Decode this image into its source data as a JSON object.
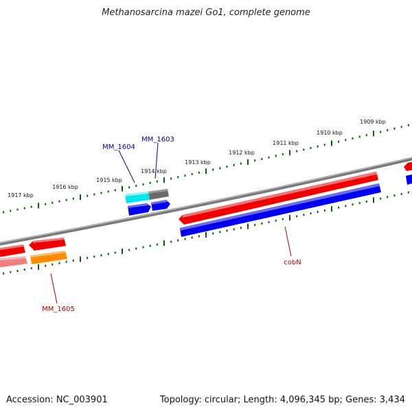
{
  "title": "Methanosarcina mazei Go1, complete genome",
  "footer": {
    "accession": "Accession: NC_003901",
    "summary": "Topology: circular; Length: 4,096,345 bp; Genes: 3,434"
  },
  "ticks": [
    "1917 kbp",
    "1916 kbp",
    "1915 kbp",
    "1914 kbp",
    "1913 kbp",
    "1912 kbp",
    "1911 kbp",
    "1910 kbp",
    "1909 kbp"
  ],
  "gene_labels": [
    {
      "text": "MM_1604",
      "color": "#00008b"
    },
    {
      "text": "MM_1603",
      "color": "#00008b"
    },
    {
      "text": "cobN",
      "color": "#b00000"
    },
    {
      "text": "MM_1605",
      "color": "#b00000"
    }
  ],
  "colors": {
    "forward_feature": "#ee0000",
    "reverse_feature": "#0000ee",
    "trna": "#00e5ee",
    "misc": "#666666",
    "pseudo": "#f08080",
    "other": "#ff8c00",
    "backbone": "#808080",
    "tick": "#006400"
  }
}
